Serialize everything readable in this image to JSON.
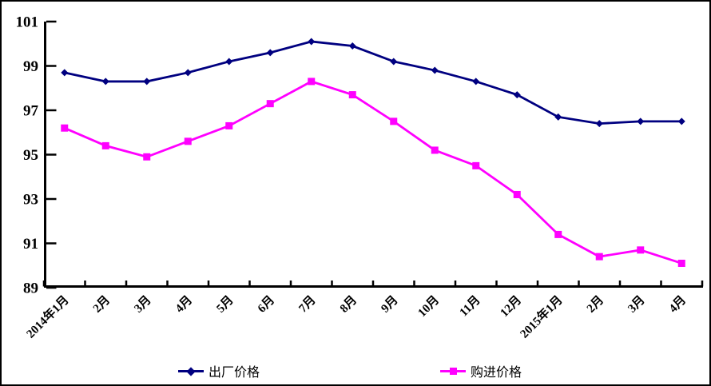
{
  "chart_data": {
    "type": "line",
    "title": "",
    "categories": [
      "2014年1月",
      "2月",
      "3月",
      "4月",
      "5月",
      "6月",
      "7月",
      "8月",
      "9月",
      "10月",
      "11月",
      "12月",
      "2015年1月",
      "2月",
      "3月",
      "4月"
    ],
    "series": [
      {
        "id": "factory-price",
        "name": "出厂价格",
        "color": "#000080",
        "marker": "diamond",
        "values": [
          98.7,
          98.3,
          98.3,
          98.7,
          99.2,
          99.6,
          100.1,
          99.9,
          99.2,
          98.8,
          98.3,
          97.7,
          96.7,
          96.4,
          96.5,
          96.5
        ]
      },
      {
        "id": "purchase-price",
        "name": "购进价格",
        "color": "#FF00FF",
        "marker": "square",
        "values": [
          96.2,
          95.4,
          94.9,
          95.6,
          96.3,
          97.3,
          98.3,
          97.7,
          96.5,
          95.2,
          94.5,
          93.2,
          91.4,
          90.4,
          90.7,
          90.1
        ]
      }
    ],
    "y_axis": {
      "min": 89,
      "max": 101,
      "step": 2,
      "ticks": [
        101,
        99,
        97,
        95,
        93,
        91,
        89
      ]
    },
    "x_axis": {
      "label_rotation_deg": 45,
      "boundary_ticks": true
    },
    "legend_position": "bottom",
    "grid": false,
    "background": "#FFFFFF",
    "axis_color": "#000000",
    "border_color": "#000000"
  }
}
